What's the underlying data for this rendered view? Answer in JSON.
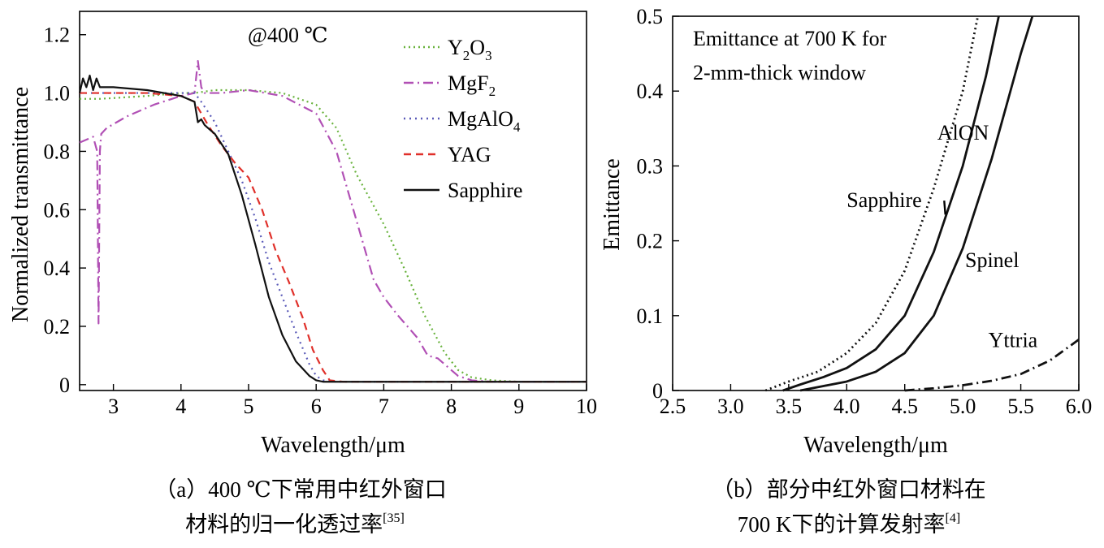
{
  "chart_data": [
    {
      "type": "line",
      "annotation": "@400 ℃",
      "xlabel": "Wavelength/μm",
      "ylabel": "Normalized transmittance",
      "xlim": [
        2.5,
        10
      ],
      "ylim": [
        -0.02,
        1.28
      ],
      "xticks": [
        3,
        4,
        5,
        6,
        7,
        8,
        9,
        10
      ],
      "yticks": [
        0,
        0.2,
        0.4,
        0.6,
        0.8,
        1.0,
        1.2
      ],
      "ytick_labels": [
        "0",
        "0.2",
        "0.4",
        "0.6",
        "0.8",
        "1.0",
        "1.2"
      ],
      "legend_position": "top-right",
      "caption_line1": "（a）400 ℃下常用中红外窗口",
      "caption_line2": "材料的归一化透过率",
      "caption_ref": "[35]",
      "series": [
        {
          "name": "Y₂O₃",
          "name_base": "Y",
          "name_sub1": "2",
          "name_mid": "O",
          "name_sub2": "3",
          "color": "#6ab33e",
          "dash": "dotted",
          "x": [
            2.5,
            2.8,
            3.5,
            4.0,
            4.2,
            4.5,
            5.0,
            5.5,
            6.0,
            6.3,
            6.6,
            7.0,
            7.3,
            7.6,
            7.9,
            8.1,
            8.3,
            8.6,
            9.0,
            10.0
          ],
          "y": [
            0.98,
            0.98,
            0.99,
            1.0,
            1.0,
            1.01,
            1.01,
            1.0,
            0.96,
            0.88,
            0.72,
            0.55,
            0.4,
            0.24,
            0.11,
            0.05,
            0.025,
            0.015,
            0.01,
            0.01
          ]
        },
        {
          "name": "MgF₂",
          "name_base": "MgF",
          "name_sub1": "2",
          "name_mid": "",
          "name_sub2": "",
          "color": "#b150b5",
          "dash": "dashdot",
          "x": [
            2.5,
            2.7,
            2.76,
            2.78,
            2.8,
            2.82,
            2.9,
            3.2,
            3.6,
            4.0,
            4.2,
            4.25,
            4.3,
            4.35,
            4.45,
            4.6,
            5.0,
            5.5,
            6.0,
            6.3,
            6.5,
            6.7,
            6.85,
            7.0,
            7.2,
            7.5,
            7.65,
            7.8,
            7.95,
            8.1,
            8.3,
            8.6,
            9.0,
            10.0
          ],
          "y": [
            0.83,
            0.85,
            0.8,
            0.21,
            0.8,
            0.86,
            0.88,
            0.92,
            0.96,
            0.99,
            1.0,
            1.11,
            1.02,
            1.0,
            1.0,
            1.0,
            1.01,
            0.99,
            0.93,
            0.8,
            0.64,
            0.48,
            0.36,
            0.3,
            0.24,
            0.16,
            0.1,
            0.09,
            0.06,
            0.03,
            0.015,
            0.01,
            0.01,
            0.01
          ]
        },
        {
          "name": "MgAlO₄",
          "name_base": "MgAlO",
          "name_sub1": "4",
          "name_mid": "",
          "name_sub2": "",
          "color": "#5a5ab8",
          "dash": "dotted2",
          "x": [
            2.5,
            3.0,
            3.5,
            4.0,
            4.2,
            4.3,
            4.5,
            4.7,
            4.9,
            5.1,
            5.3,
            5.5,
            5.7,
            5.9,
            6.0,
            6.1,
            6.3,
            7.0,
            10.0
          ],
          "y": [
            1.0,
            1.0,
            1.0,
            1.0,
            1.0,
            0.97,
            0.9,
            0.8,
            0.7,
            0.57,
            0.42,
            0.3,
            0.18,
            0.07,
            0.03,
            0.015,
            0.01,
            0.01,
            0.01
          ]
        },
        {
          "name": "YAG",
          "name_base": "YAG",
          "name_sub1": "",
          "name_mid": "",
          "name_sub2": "",
          "color": "#e0302a",
          "dash": "dashed",
          "x": [
            2.5,
            3.0,
            3.5,
            4.0,
            4.2,
            4.4,
            4.6,
            4.8,
            5.0,
            5.2,
            5.4,
            5.6,
            5.8,
            5.95,
            6.1,
            6.2,
            6.4,
            7.0,
            10.0
          ],
          "y": [
            1.0,
            1.0,
            1.0,
            0.99,
            0.97,
            0.89,
            0.82,
            0.76,
            0.71,
            0.6,
            0.46,
            0.35,
            0.23,
            0.12,
            0.05,
            0.015,
            0.01,
            0.01,
            0.01
          ]
        },
        {
          "name": "Sapphire",
          "name_base": "Sapphire",
          "name_sub1": "",
          "name_mid": "",
          "name_sub2": "",
          "color": "#111111",
          "dash": "solid",
          "x": [
            2.5,
            2.55,
            2.6,
            2.65,
            2.7,
            2.75,
            2.8,
            3.0,
            3.5,
            4.0,
            4.2,
            4.25,
            4.3,
            4.35,
            4.5,
            4.7,
            4.9,
            5.1,
            5.3,
            5.5,
            5.7,
            5.9,
            6.0,
            6.1,
            6.2,
            6.5,
            7.0,
            10.0
          ],
          "y": [
            1.0,
            1.05,
            1.02,
            1.06,
            1.01,
            1.05,
            1.02,
            1.02,
            1.01,
            0.99,
            0.97,
            0.9,
            0.91,
            0.89,
            0.86,
            0.79,
            0.65,
            0.48,
            0.3,
            0.17,
            0.08,
            0.03,
            0.015,
            0.01,
            0.01,
            0.01,
            0.01,
            0.01
          ]
        }
      ]
    },
    {
      "type": "line",
      "title_line1": "Emittance at 700 K for",
      "title_line2": "2-mm-thick window",
      "xlabel": "Wavelength/μm",
      "ylabel": "Emittance",
      "xlim": [
        2.5,
        6.0
      ],
      "ylim": [
        0,
        0.5
      ],
      "xticks": [
        2.5,
        3.0,
        3.5,
        4.0,
        4.5,
        5.0,
        5.5,
        6.0
      ],
      "xtick_labels": [
        "2.5",
        "3.0",
        "3.5",
        "4.0",
        "4.5",
        "5.0",
        "5.5",
        "6.0"
      ],
      "yticks": [
        0,
        0.1,
        0.2,
        0.3,
        0.4,
        0.5
      ],
      "ytick_labels": [
        "0",
        "0.1",
        "0.2",
        "0.3",
        "0.4",
        "0.5"
      ],
      "caption_line1": "（b）部分中红外窗口材料在",
      "caption_line2": "700 K下的计算发射率",
      "caption_ref": "[4]",
      "series": [
        {
          "name": "AlON",
          "color": "#111111",
          "dash": "dotted",
          "label_x": 4.78,
          "label_y": 0.335,
          "leader": false,
          "x": [
            3.3,
            3.5,
            3.75,
            4.0,
            4.25,
            4.5,
            4.75,
            5.0,
            5.13
          ],
          "y": [
            0.0,
            0.012,
            0.025,
            0.05,
            0.09,
            0.16,
            0.27,
            0.4,
            0.5
          ]
        },
        {
          "name": "Sapphire",
          "color": "#111111",
          "dash": "solid",
          "label_x": 4.0,
          "label_y": 0.245,
          "leader": true,
          "leader_to_x": 4.85,
          "leader_to_y": 0.235,
          "x": [
            3.45,
            3.6,
            3.8,
            4.0,
            4.25,
            4.5,
            4.75,
            5.0,
            5.2,
            5.31
          ],
          "y": [
            0.0,
            0.008,
            0.018,
            0.03,
            0.055,
            0.1,
            0.185,
            0.3,
            0.42,
            0.5
          ]
        },
        {
          "name": "Spinel",
          "color": "#111111",
          "dash": "solid",
          "label_x": 5.02,
          "label_y": 0.165,
          "leader": false,
          "x": [
            3.6,
            3.8,
            4.0,
            4.25,
            4.5,
            4.75,
            5.0,
            5.25,
            5.5,
            5.6
          ],
          "y": [
            0.0,
            0.006,
            0.012,
            0.025,
            0.05,
            0.1,
            0.19,
            0.31,
            0.45,
            0.5
          ]
        },
        {
          "name": "Yttria",
          "color": "#111111",
          "dash": "dashdot",
          "label_x": 5.22,
          "label_y": 0.058,
          "leader": false,
          "x": [
            4.5,
            4.75,
            5.0,
            5.25,
            5.5,
            5.75,
            6.0
          ],
          "y": [
            0.0,
            0.003,
            0.007,
            0.013,
            0.022,
            0.04,
            0.068
          ]
        }
      ]
    }
  ]
}
